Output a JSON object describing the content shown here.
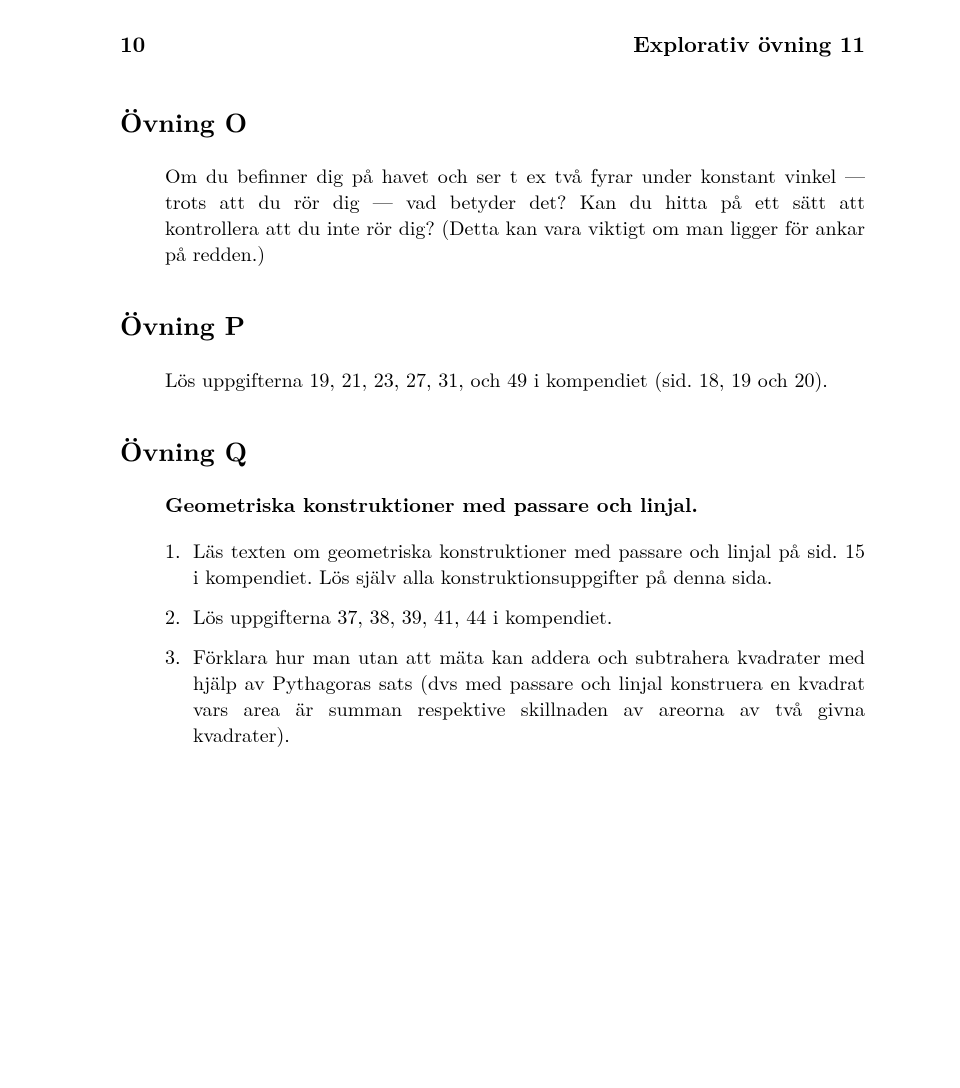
{
  "header": {
    "page_number": "10",
    "running_title": "Explorativ övning 11"
  },
  "sections": {
    "o": {
      "heading": "Övning O",
      "paragraph": "Om du befinner dig på havet och ser t ex två fyrar under konstant vinkel — trots att du rör dig — vad betyder det? Kan du hitta på ett sätt att kontrollera att du inte rör dig? (Detta kan vara viktigt om man ligger för ankar på redden.)"
    },
    "p": {
      "heading": "Övning P",
      "paragraph": "Lös uppgifterna 19, 21, 23, 27, 31, och 49 i kompendiet (sid. 18, 19 och 20)."
    },
    "q": {
      "heading": "Övning Q",
      "sub_heading": "Geometriska konstruktioner med passare och linjal.",
      "items": [
        {
          "n": "1.",
          "t": "Läs texten om geometriska konstruktioner med passare och linjal på sid. 15 i kompendiet. Lös själv alla konstruktionsuppgifter på denna sida."
        },
        {
          "n": "2.",
          "t": "Lös uppgifterna 37, 38, 39, 41, 44 i kompendiet."
        },
        {
          "n": "3.",
          "t": "Förklara hur man utan att mäta kan addera och subtrahera kvadrater med hjälp av Pythagoras sats (dvs med passare och linjal konstruera en kvadrat vars area är summan respektive skillnaden av areorna av två givna kvadrater)."
        }
      ]
    }
  }
}
